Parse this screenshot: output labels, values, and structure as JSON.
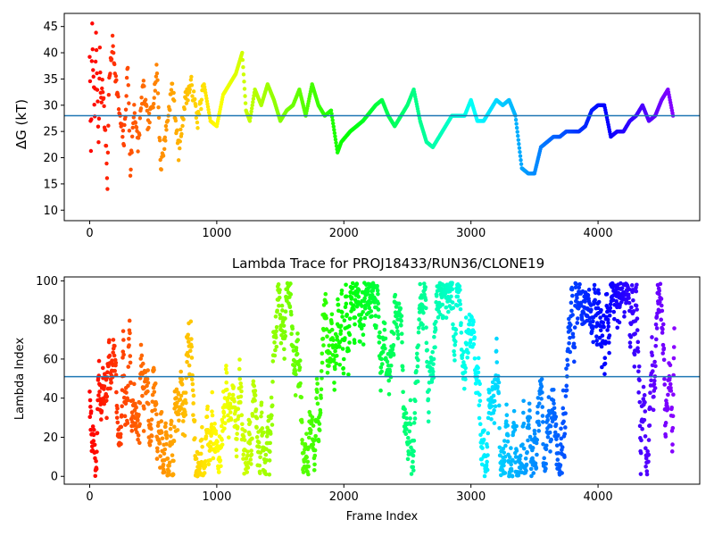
{
  "colors": {
    "hline": "#1f77b4",
    "colormap": "rainbow_r"
  },
  "chart_data": [
    {
      "type": "scatter",
      "title": "",
      "xlabel": "",
      "ylabel": "ΔG (kT)",
      "xlim": [
        -200,
        4800
      ],
      "ylim": [
        8,
        47.5
      ],
      "xticks": [
        0,
        1000,
        2000,
        3000,
        4000
      ],
      "xtick_labels": [
        "0",
        "1000",
        "2000",
        "3000",
        "4000"
      ],
      "yticks": [
        10,
        15,
        20,
        25,
        30,
        35,
        40,
        45
      ],
      "ytick_labels": [
        "10",
        "15",
        "20",
        "25",
        "30",
        "35",
        "40",
        "45"
      ],
      "hline": 28,
      "color_by": "frame index (rainbow, red at 0 to violet at 4600)",
      "series": [
        {
          "x": [
            0,
            10,
            20,
            30,
            40,
            50,
            60,
            70,
            80,
            90,
            100,
            110,
            120,
            130,
            140,
            150,
            180,
            210,
            240,
            270,
            300,
            320,
            350,
            380,
            420,
            460,
            500,
            530,
            560,
            600,
            650,
            700,
            750,
            800,
            850,
            900,
            950,
            1000,
            1050,
            1100,
            1150,
            1200,
            1230,
            1260,
            1300,
            1350,
            1400,
            1450,
            1500,
            1550,
            1600,
            1650,
            1700,
            1750,
            1800,
            1850,
            1900,
            1950,
            1980,
            2050,
            2150,
            2250,
            2300,
            2350,
            2400,
            2450,
            2500,
            2550,
            2600,
            2650,
            2700,
            2750,
            2800,
            2850,
            2900,
            2950,
            3000,
            3050,
            3100,
            3150,
            3200,
            3250,
            3300,
            3350,
            3400,
            3450,
            3500,
            3550,
            3600,
            3650,
            3700,
            3750,
            3800,
            3850,
            3900,
            3950,
            4000,
            4050,
            4100,
            4150,
            4200,
            4250,
            4300,
            4350,
            4400,
            4450,
            4500,
            4550,
            4590
          ],
          "y": [
            40,
            20,
            46,
            34,
            28,
            43,
            33,
            23,
            40,
            30,
            35,
            31,
            25,
            22,
            14,
            33,
            42,
            34,
            27,
            23,
            38,
            17,
            30,
            22,
            34,
            26,
            31,
            37,
            18,
            25,
            34,
            21,
            31,
            34,
            27,
            34,
            27,
            26,
            32,
            34,
            36,
            40,
            29,
            27,
            33,
            30,
            34,
            31,
            27,
            29,
            30,
            33,
            28,
            34,
            30,
            28,
            29,
            21,
            23,
            25,
            27,
            30,
            31,
            28,
            26,
            28,
            30,
            33,
            27,
            23,
            22,
            24,
            26,
            28,
            28,
            28,
            31,
            27,
            27,
            29,
            31,
            30,
            31,
            28,
            18,
            17,
            17,
            22,
            23,
            24,
            24,
            25,
            25,
            25,
            26,
            29,
            30,
            30,
            24,
            25,
            25,
            27,
            28,
            30,
            27,
            28,
            31,
            33,
            28
          ]
        }
      ]
    },
    {
      "type": "scatter",
      "title": "Lambda Trace for PROJ18433/RUN36/CLONE19",
      "xlabel": "Frame Index",
      "ylabel": "Lambda Index",
      "xlim": [
        -200,
        4800
      ],
      "ylim": [
        -4,
        102
      ],
      "xticks": [
        0,
        1000,
        2000,
        3000,
        4000
      ],
      "xtick_labels": [
        "0",
        "1000",
        "2000",
        "3000",
        "4000"
      ],
      "yticks": [
        0,
        20,
        40,
        60,
        80,
        100
      ],
      "ytick_labels": [
        "0",
        "20",
        "40",
        "60",
        "80",
        "100"
      ],
      "hline": 51,
      "color_by": "frame index (rainbow, red at 0 to violet at 4600)",
      "series": [
        {
          "x_range": [
            0,
            4600
          ],
          "y_range": [
            0,
            99
          ],
          "points_per_frame": "one lambda index per frame, spread across the full range"
        }
      ]
    }
  ]
}
